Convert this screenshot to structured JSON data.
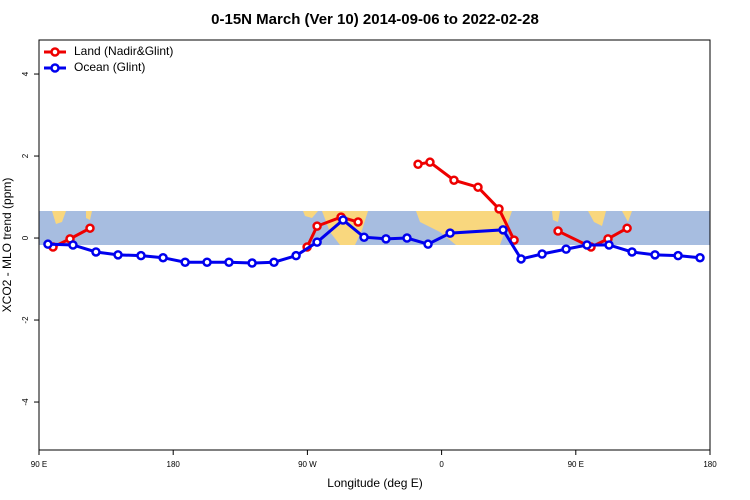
{
  "chart_data": {
    "type": "line",
    "title": "0-15N March (Ver 10)   2014-09-06 to 2022-02-28",
    "x_label": "Longitude (deg E)",
    "y_label": "XCO2 - MLO trend (ppm)",
    "xlim": [
      90,
      540
    ],
    "ylim": [
      -5.17,
      4.83
    ],
    "xticks": [
      {
        "value": 90,
        "label": "90 E"
      },
      180,
      {
        "value": 270,
        "label": "90 W"
      },
      {
        "value": 360,
        "label": "0"
      },
      {
        "value": 450,
        "label": "90 E"
      },
      {
        "value": 540,
        "label": "180"
      }
    ],
    "yticks": [
      -4,
      -2,
      0,
      2,
      4
    ],
    "legend": "top-left",
    "series": [
      {
        "name": "Land (Nadir&Glint)",
        "color": "#ee0000",
        "x": [
          99.4,
          110.8,
          124.2,
          null,
          269.8,
          276.5,
          292.6,
          304,
          null,
          344.2,
          352.2,
          368.3,
          384.4,
          398.5,
          408.6,
          null,
          438.1,
          460.2,
          471.6,
          484.4
        ],
        "values": [
          -0.22,
          -0.02,
          0.24,
          null,
          -0.22,
          0.29,
          0.51,
          0.39,
          null,
          1.8,
          1.85,
          1.41,
          1.24,
          0.71,
          -0.05,
          null,
          0.17,
          -0.22,
          -0.02,
          0.24
        ]
      },
      {
        "name": "Ocean (Glint)",
        "color": "#0000ee",
        "x": [
          96,
          112.8,
          128.2,
          143,
          158.4,
          173.2,
          188,
          202.7,
          217.4,
          232.9,
          247.6,
          262.4,
          276.5,
          293.9,
          308,
          322.7,
          336.8,
          350.9,
          365.7,
          401.2,
          413.3,
          427.4,
          443.5,
          457.5,
          472.3,
          487.7,
          503.1,
          518.6,
          533.3
        ],
        "values": [
          -0.15,
          -0.17,
          -0.34,
          -0.41,
          -0.43,
          -0.48,
          -0.59,
          -0.59,
          -0.59,
          -0.61,
          -0.59,
          -0.43,
          -0.1,
          0.44,
          0.02,
          -0.02,
          0,
          -0.15,
          0.12,
          0.2,
          -0.51,
          -0.39,
          -0.27,
          -0.17,
          -0.17,
          -0.34,
          -0.41,
          -0.43,
          -0.48
        ]
      }
    ]
  }
}
